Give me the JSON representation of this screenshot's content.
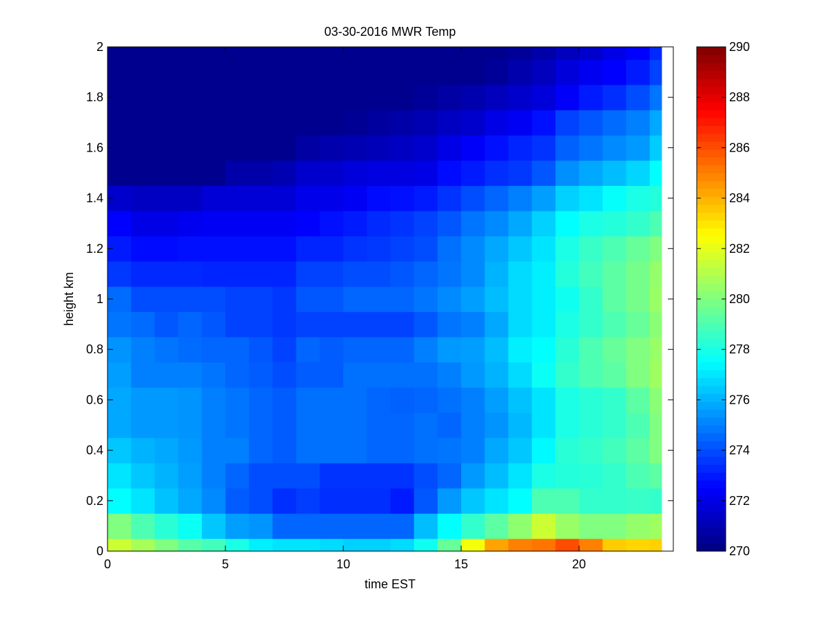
{
  "chart_data": {
    "type": "heatmap",
    "title": "03-30-2016 MWR Temp",
    "xlabel": "time EST",
    "ylabel": "height km",
    "xlim": [
      0,
      24
    ],
    "ylim": [
      0,
      2
    ],
    "xticks": [
      0,
      5,
      10,
      15,
      20
    ],
    "yticks": [
      0,
      0.2,
      0.4,
      0.6,
      0.8,
      1,
      1.2,
      1.4,
      1.6,
      1.8,
      2
    ],
    "ytick_labels": [
      "0",
      "0.2",
      "0.4",
      "0.6",
      "0.8",
      "1",
      "1.2",
      "1.4",
      "1.6",
      "1.8",
      "2"
    ],
    "colorbar": {
      "min": 270,
      "max": 290,
      "ticks": [
        270,
        272,
        274,
        276,
        278,
        280,
        282,
        284,
        286,
        288,
        290
      ],
      "colormap": "jet"
    },
    "x_edges": [
      0,
      1,
      2,
      3,
      4,
      5,
      6,
      7,
      8,
      9,
      10,
      11,
      12,
      13,
      14,
      15,
      16,
      17,
      18,
      19,
      20,
      21,
      22,
      23,
      23.5
    ],
    "y_edges": [
      0,
      0.05,
      0.15,
      0.25,
      0.35,
      0.45,
      0.55,
      0.65,
      0.75,
      0.85,
      0.95,
      1.05,
      1.15,
      1.25,
      1.35,
      1.45,
      1.55,
      1.65,
      1.75,
      1.85,
      1.95,
      2.0
    ],
    "values": [
      [
        281.5,
        280.8,
        280.0,
        279.2,
        278.8,
        278.0,
        277.2,
        277.0,
        277.0,
        276.8,
        276.6,
        276.6,
        276.8,
        277.8,
        279.5,
        282.3,
        284.3,
        285.0,
        285.2,
        286.0,
        285.0,
        283.5,
        283.3,
        283.4,
        282.5
      ],
      [
        280.0,
        279.0,
        278.3,
        277.7,
        276.4,
        275.6,
        275.4,
        274.5,
        274.5,
        274.5,
        274.5,
        274.5,
        274.5,
        276.2,
        277.5,
        278.5,
        279.3,
        280.3,
        281.5,
        280.5,
        280.0,
        280.0,
        280.4,
        280.6,
        280.0
      ],
      [
        277.5,
        277.0,
        276.3,
        275.8,
        275.2,
        274.3,
        274.0,
        273.4,
        273.7,
        273.4,
        273.4,
        273.4,
        273.0,
        274.2,
        275.5,
        276.4,
        277.0,
        277.5,
        279.0,
        279.0,
        278.5,
        278.5,
        278.6,
        278.5,
        279.0
      ],
      [
        277.0,
        276.4,
        276.0,
        275.6,
        275.0,
        274.5,
        274.0,
        274.0,
        274.0,
        273.5,
        273.5,
        273.5,
        273.5,
        274.0,
        274.5,
        275.5,
        276.2,
        277.0,
        278.0,
        278.2,
        278.3,
        278.5,
        279.0,
        279.3,
        279.7
      ],
      [
        276.4,
        276.0,
        275.8,
        275.5,
        275.0,
        275.0,
        274.5,
        274.3,
        274.7,
        274.7,
        274.7,
        274.5,
        274.5,
        274.7,
        274.8,
        275.0,
        275.8,
        276.4,
        277.4,
        278.3,
        278.5,
        278.8,
        279.3,
        280.0,
        280.2
      ],
      [
        275.8,
        275.5,
        275.5,
        275.4,
        275.0,
        274.8,
        274.5,
        274.3,
        274.7,
        274.7,
        274.7,
        274.5,
        274.5,
        274.7,
        274.5,
        275.0,
        275.4,
        276.1,
        277.0,
        278.0,
        278.3,
        278.5,
        279.0,
        280.0,
        280.5
      ],
      [
        275.8,
        275.5,
        275.5,
        275.4,
        275.0,
        274.8,
        274.5,
        274.3,
        274.7,
        274.7,
        274.7,
        274.5,
        274.4,
        274.5,
        274.7,
        275.0,
        275.6,
        276.3,
        277.0,
        278.0,
        278.3,
        278.5,
        279.3,
        280.2,
        280.8
      ],
      [
        275.6,
        275.0,
        275.0,
        275.0,
        274.8,
        274.5,
        274.3,
        274.0,
        274.3,
        274.3,
        274.7,
        274.7,
        274.7,
        274.7,
        275.0,
        275.5,
        276.0,
        276.8,
        277.7,
        278.5,
        279.0,
        279.3,
        280.0,
        280.6,
        281.0
      ],
      [
        275.4,
        275.0,
        274.8,
        274.6,
        274.5,
        274.5,
        274.2,
        273.8,
        274.5,
        274.3,
        274.5,
        274.5,
        274.5,
        275.0,
        275.5,
        275.6,
        276.2,
        277.2,
        277.5,
        278.3,
        279.0,
        279.5,
        280.0,
        280.5,
        281.2
      ],
      [
        274.8,
        274.6,
        274.2,
        274.5,
        274.2,
        273.8,
        273.8,
        273.6,
        273.8,
        273.8,
        273.8,
        273.8,
        273.8,
        274.2,
        274.8,
        275.0,
        275.8,
        276.8,
        277.2,
        278.0,
        278.5,
        279.0,
        279.5,
        280.2,
        280.7
      ],
      [
        274.6,
        274.0,
        274.0,
        274.0,
        274.0,
        273.8,
        273.8,
        273.6,
        274.2,
        274.2,
        274.5,
        274.5,
        274.5,
        274.8,
        275.2,
        275.6,
        276.2,
        276.8,
        277.2,
        277.8,
        278.5,
        279.3,
        279.8,
        280.5,
        281.0
      ],
      [
        273.6,
        273.3,
        273.3,
        273.3,
        273.2,
        273.2,
        273.2,
        273.2,
        273.8,
        273.8,
        274.0,
        274.0,
        274.2,
        274.5,
        274.8,
        275.2,
        276.0,
        276.8,
        277.2,
        278.2,
        278.8,
        279.3,
        279.8,
        280.4,
        280.8
      ],
      [
        273.0,
        272.7,
        272.7,
        272.8,
        272.8,
        272.8,
        272.8,
        272.8,
        273.2,
        273.2,
        273.5,
        273.6,
        273.8,
        274.0,
        274.7,
        275.2,
        275.8,
        276.4,
        277.0,
        278.0,
        278.6,
        279.0,
        279.5,
        280.0,
        280.5
      ],
      [
        272.5,
        272.0,
        272.0,
        272.2,
        272.3,
        272.3,
        272.3,
        272.3,
        272.5,
        272.8,
        273.0,
        273.3,
        273.5,
        273.8,
        274.2,
        274.8,
        275.2,
        275.8,
        276.6,
        277.5,
        278.0,
        278.2,
        278.5,
        279.0,
        279.5
      ],
      [
        271.5,
        271.3,
        271.3,
        271.3,
        271.7,
        271.7,
        271.7,
        271.7,
        272.1,
        272.1,
        272.3,
        272.7,
        272.8,
        273.0,
        273.5,
        274.0,
        274.5,
        275.0,
        275.6,
        276.6,
        277.0,
        277.6,
        278.0,
        278.2,
        278.8
      ],
      [
        270.3,
        270.3,
        270.3,
        270.3,
        270.3,
        270.8,
        270.8,
        271.0,
        271.5,
        271.5,
        271.8,
        271.9,
        271.9,
        272.0,
        272.7,
        273.0,
        273.4,
        273.6,
        274.2,
        275.3,
        275.8,
        276.2,
        276.7,
        277.5,
        278.0
      ],
      [
        270.3,
        270.3,
        270.3,
        270.3,
        270.3,
        270.3,
        270.3,
        270.3,
        270.7,
        270.9,
        271.0,
        271.1,
        271.3,
        271.5,
        272.0,
        272.4,
        272.8,
        273.2,
        273.5,
        274.4,
        274.8,
        275.2,
        275.5,
        276.5,
        277.2
      ],
      [
        270.3,
        270.3,
        270.3,
        270.3,
        270.3,
        270.3,
        270.3,
        270.3,
        270.3,
        270.3,
        270.4,
        270.6,
        270.8,
        271.0,
        271.3,
        271.5,
        272.0,
        272.3,
        272.8,
        273.8,
        274.2,
        274.6,
        275.0,
        275.8,
        276.5
      ],
      [
        270.3,
        270.3,
        270.3,
        270.3,
        270.3,
        270.3,
        270.3,
        270.3,
        270.3,
        270.3,
        270.3,
        270.3,
        270.3,
        270.5,
        270.7,
        270.9,
        271.2,
        271.5,
        271.8,
        272.4,
        273.0,
        273.4,
        274.0,
        274.8,
        275.3
      ],
      [
        270.3,
        270.3,
        270.3,
        270.3,
        270.3,
        270.3,
        270.3,
        270.3,
        270.3,
        270.3,
        270.3,
        270.3,
        270.3,
        270.3,
        270.3,
        270.3,
        270.5,
        270.9,
        271.2,
        271.8,
        272.2,
        272.5,
        273.0,
        273.8,
        274.3
      ],
      [
        270.3,
        270.3,
        270.3,
        270.3,
        270.3,
        270.3,
        270.3,
        270.3,
        270.3,
        270.3,
        270.3,
        270.3,
        270.3,
        270.3,
        270.3,
        270.3,
        270.3,
        270.5,
        270.8,
        271.2,
        271.5,
        272.0,
        272.5,
        273.3,
        273.8
      ]
    ]
  }
}
